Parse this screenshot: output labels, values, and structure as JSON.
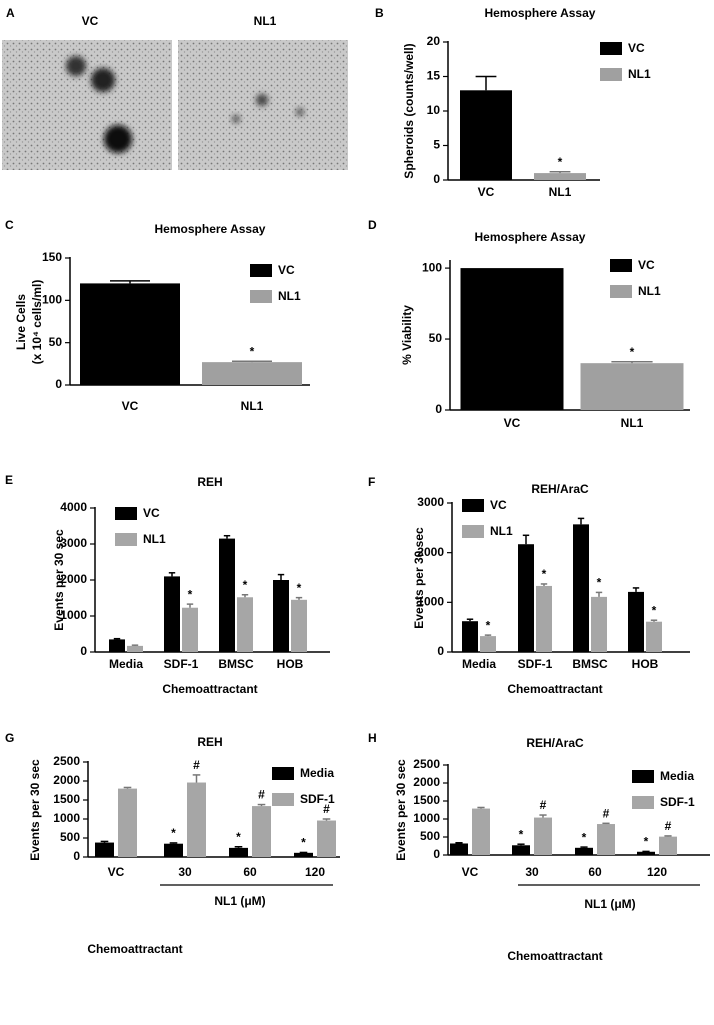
{
  "panel_a": {
    "letter": "A",
    "labels": [
      "VC",
      "NL1"
    ]
  },
  "chart_data": [
    {
      "type": "bar",
      "letter": "B",
      "title": "Hemosphere Assay",
      "ylabel": "Spheroids (counts/well)",
      "categories": [
        "VC",
        "NL1"
      ],
      "values": [
        13,
        1
      ],
      "errors": [
        2,
        0.2
      ],
      "colors": [
        "#000000",
        "#a0a0a0"
      ],
      "legend": [
        "VC",
        "NL1"
      ],
      "annotations": [
        null,
        "*"
      ],
      "ylim": [
        0,
        20
      ],
      "yticks": [
        0,
        5,
        10,
        15,
        20
      ]
    },
    {
      "type": "bar",
      "letter": "C",
      "title": "Hemosphere Assay",
      "ylabel": [
        "Live Cells",
        "(x 10⁴ cells/ml)"
      ],
      "categories": [
        "VC",
        "NL1"
      ],
      "values": [
        120,
        27
      ],
      "errors": [
        3,
        1
      ],
      "colors": [
        "#000000",
        "#a0a0a0"
      ],
      "legend": [
        "VC",
        "NL1"
      ],
      "annotations": [
        null,
        "*"
      ],
      "ylim": [
        0,
        150
      ],
      "yticks": [
        0,
        50,
        100,
        150
      ]
    },
    {
      "type": "bar",
      "letter": "D",
      "title": "Hemosphere Assay",
      "ylabel": "% Viability",
      "categories": [
        "VC",
        "NL1"
      ],
      "values": [
        100,
        33
      ],
      "errors": [
        null,
        1
      ],
      "colors": [
        "#000000",
        "#a0a0a0"
      ],
      "legend": [
        "VC",
        "NL1"
      ],
      "annotations": [
        null,
        "*"
      ],
      "ylim": [
        0,
        105
      ],
      "yticks": [
        0,
        50,
        100
      ]
    },
    {
      "type": "grouped-bar",
      "letter": "E",
      "title": "REH",
      "ylabel": "Events per 30 sec",
      "xlabel": "Chemoattractant",
      "categories": [
        "Media",
        "SDF-1",
        "BMSC",
        "HOB"
      ],
      "series": [
        {
          "name": "VC",
          "color": "#000000",
          "values": [
            350,
            2100,
            3150,
            2000
          ],
          "errors": [
            20,
            100,
            80,
            150
          ],
          "annotations": [
            null,
            null,
            null,
            null
          ]
        },
        {
          "name": "NL1",
          "color": "#a6a6a6",
          "values": [
            170,
            1230,
            1520,
            1450
          ],
          "errors": [
            20,
            100,
            70,
            60
          ],
          "annotations": [
            null,
            "*",
            "*",
            "*"
          ]
        }
      ],
      "ylim": [
        0,
        4000
      ],
      "yticks": [
        0,
        1000,
        2000,
        3000,
        4000
      ]
    },
    {
      "type": "grouped-bar",
      "letter": "F",
      "title": "REH/AraC",
      "ylabel": "Events per 30 sec",
      "xlabel": "Chemoattractant",
      "categories": [
        "Media",
        "SDF-1",
        "BMSC",
        "HOB"
      ],
      "series": [
        {
          "name": "VC",
          "color": "#000000",
          "values": [
            620,
            2170,
            2570,
            1210
          ],
          "errors": [
            40,
            180,
            120,
            80
          ],
          "annotations": [
            null,
            null,
            null,
            null
          ]
        },
        {
          "name": "NL1",
          "color": "#a6a6a6",
          "values": [
            320,
            1330,
            1110,
            610
          ],
          "errors": [
            20,
            40,
            90,
            30
          ],
          "annotations": [
            "*",
            "*",
            "*",
            "*"
          ]
        }
      ],
      "ylim": [
        0,
        3000
      ],
      "yticks": [
        0,
        1000,
        2000,
        3000
      ]
    },
    {
      "type": "grouped-bar",
      "letter": "G",
      "title": "REH",
      "ylabel": "Events per 30 sec",
      "xlabel": "Chemoattractant",
      "xgroup_label": "NL1 (μM)",
      "categories": [
        "VC",
        "30",
        "60",
        "120"
      ],
      "series": [
        {
          "name": "Media",
          "color": "#000000",
          "values": [
            380,
            350,
            240,
            110
          ],
          "errors": [
            30,
            20,
            30,
            10
          ],
          "annotations": [
            null,
            "*",
            "*",
            "*"
          ]
        },
        {
          "name": "SDF-1",
          "color": "#a6a6a6",
          "values": [
            1800,
            1960,
            1340,
            960
          ],
          "errors": [
            30,
            200,
            40,
            40
          ],
          "annotations": [
            null,
            "#",
            "#",
            "#"
          ]
        }
      ],
      "ylim": [
        0,
        2500
      ],
      "yticks": [
        0,
        500,
        1000,
        1500,
        2000,
        2500
      ]
    },
    {
      "type": "grouped-bar",
      "letter": "H",
      "title": "REH/AraC",
      "ylabel": "Events per 30 sec",
      "xlabel": "Chemoattractant",
      "xgroup_label": "NL1 (μM)",
      "categories": [
        "VC",
        "30",
        "60",
        "120"
      ],
      "series": [
        {
          "name": "Media",
          "color": "#000000",
          "values": [
            320,
            270,
            200,
            90
          ],
          "errors": [
            20,
            30,
            20,
            10
          ],
          "annotations": [
            null,
            "*",
            "*",
            "*"
          ]
        },
        {
          "name": "SDF-1",
          "color": "#a6a6a6",
          "values": [
            1290,
            1040,
            860,
            510
          ],
          "errors": [
            30,
            70,
            20,
            20
          ],
          "annotations": [
            null,
            "#",
            "#",
            "#"
          ]
        }
      ],
      "ylim": [
        0,
        2500
      ],
      "yticks": [
        0,
        500,
        1000,
        1500,
        2000,
        2500
      ]
    }
  ]
}
